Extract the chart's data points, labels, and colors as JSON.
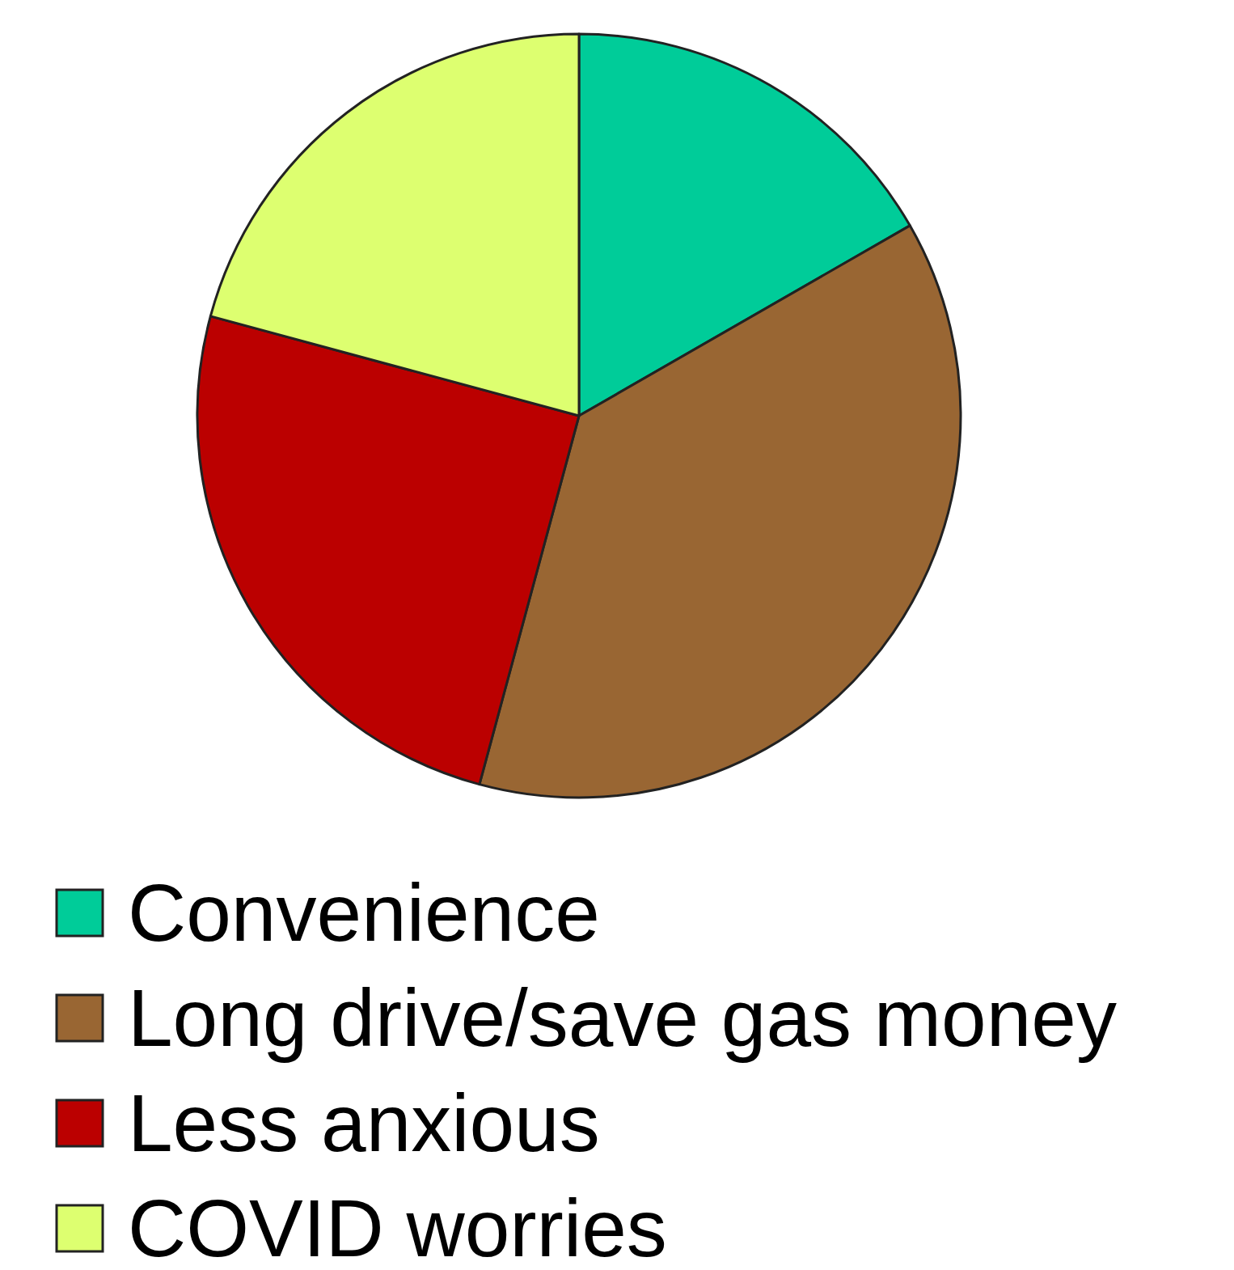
{
  "chart_data": {
    "type": "pie",
    "categories": [
      "Convenience",
      "Long drive/save gas money",
      "Less anxious",
      "COVID worries"
    ],
    "values": [
      16.7,
      37.5,
      25,
      20.8
    ],
    "colors": [
      "#00cc99",
      "#996633",
      "#bb0000",
      "#ddff70"
    ],
    "legend": "bottom"
  }
}
